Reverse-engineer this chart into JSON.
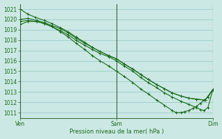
{
  "title": "Pression niveau de la mer( hPa )",
  "bg_color": "#cce8e4",
  "grid_color": "#99cccc",
  "line_color": "#1a6b1a",
  "ylim": [
    1010.5,
    1021.5
  ],
  "yticks": [
    1011,
    1012,
    1013,
    1014,
    1015,
    1016,
    1017,
    1018,
    1019,
    1020,
    1021
  ],
  "x_labels": [
    "Ven",
    "Sam",
    "Dim"
  ],
  "series": [
    {
      "x": [
        0.0,
        0.08,
        0.16,
        0.25,
        0.33,
        0.42,
        0.5,
        0.58,
        0.67,
        0.75,
        0.83,
        0.92,
        1.0,
        1.08,
        1.17,
        1.25,
        1.33,
        1.42,
        1.5,
        1.58,
        1.67,
        1.75,
        1.83,
        1.92,
        2.0
      ],
      "y": [
        1021.0,
        1020.5,
        1020.2,
        1019.9,
        1019.6,
        1019.2,
        1018.8,
        1018.3,
        1017.8,
        1017.3,
        1016.9,
        1016.5,
        1016.2,
        1015.7,
        1015.2,
        1014.7,
        1014.2,
        1013.7,
        1013.3,
        1012.9,
        1012.6,
        1012.4,
        1012.3,
        1012.2,
        1013.2
      ]
    },
    {
      "x": [
        0.0,
        0.08,
        0.17,
        0.25,
        0.33,
        0.42,
        0.5,
        0.58,
        0.67,
        0.75,
        0.83,
        0.92,
        1.0,
        1.08,
        1.17,
        1.25,
        1.33,
        1.42,
        1.5,
        1.58,
        1.67,
        1.75,
        1.83,
        1.92,
        2.0
      ],
      "y": [
        1020.0,
        1020.1,
        1019.9,
        1019.7,
        1019.4,
        1019.1,
        1018.7,
        1018.2,
        1017.7,
        1017.3,
        1016.9,
        1016.5,
        1016.2,
        1015.7,
        1015.2,
        1014.7,
        1014.2,
        1013.7,
        1013.3,
        1012.9,
        1012.6,
        1012.4,
        1012.3,
        1012.2,
        1013.2
      ]
    },
    {
      "x": [
        0.0,
        0.08,
        0.17,
        0.25,
        0.33,
        0.42,
        0.5,
        0.58,
        0.67,
        0.75,
        0.83,
        0.92,
        1.0,
        1.08,
        1.17,
        1.25,
        1.33,
        1.42,
        1.5,
        1.58,
        1.67,
        1.75,
        1.83,
        1.87,
        1.91,
        1.95,
        2.0
      ],
      "y": [
        1019.8,
        1019.9,
        1019.8,
        1019.6,
        1019.3,
        1018.9,
        1018.5,
        1018.0,
        1017.5,
        1017.1,
        1016.7,
        1016.4,
        1016.0,
        1015.5,
        1015.0,
        1014.4,
        1013.9,
        1013.4,
        1012.9,
        1012.5,
        1012.1,
        1011.8,
        1011.5,
        1011.3,
        1011.2,
        1011.5,
        1013.2
      ]
    },
    {
      "x": [
        0.0,
        0.08,
        0.17,
        0.25,
        0.33,
        0.42,
        0.5,
        0.58,
        0.67,
        0.75,
        0.83,
        0.92,
        1.0,
        1.08,
        1.17,
        1.25,
        1.33,
        1.42,
        1.5,
        1.58,
        1.62,
        1.67,
        1.71,
        1.75,
        1.79,
        1.83,
        1.87,
        1.91,
        1.95,
        2.0
      ],
      "y": [
        1019.5,
        1019.8,
        1019.8,
        1019.6,
        1019.3,
        1018.8,
        1018.3,
        1017.7,
        1017.1,
        1016.5,
        1016.0,
        1015.5,
        1015.0,
        1014.5,
        1013.9,
        1013.3,
        1012.8,
        1012.2,
        1011.7,
        1011.2,
        1011.0,
        1011.0,
        1011.1,
        1011.2,
        1011.4,
        1011.6,
        1011.9,
        1012.2,
        1012.5,
        1013.2
      ]
    }
  ]
}
